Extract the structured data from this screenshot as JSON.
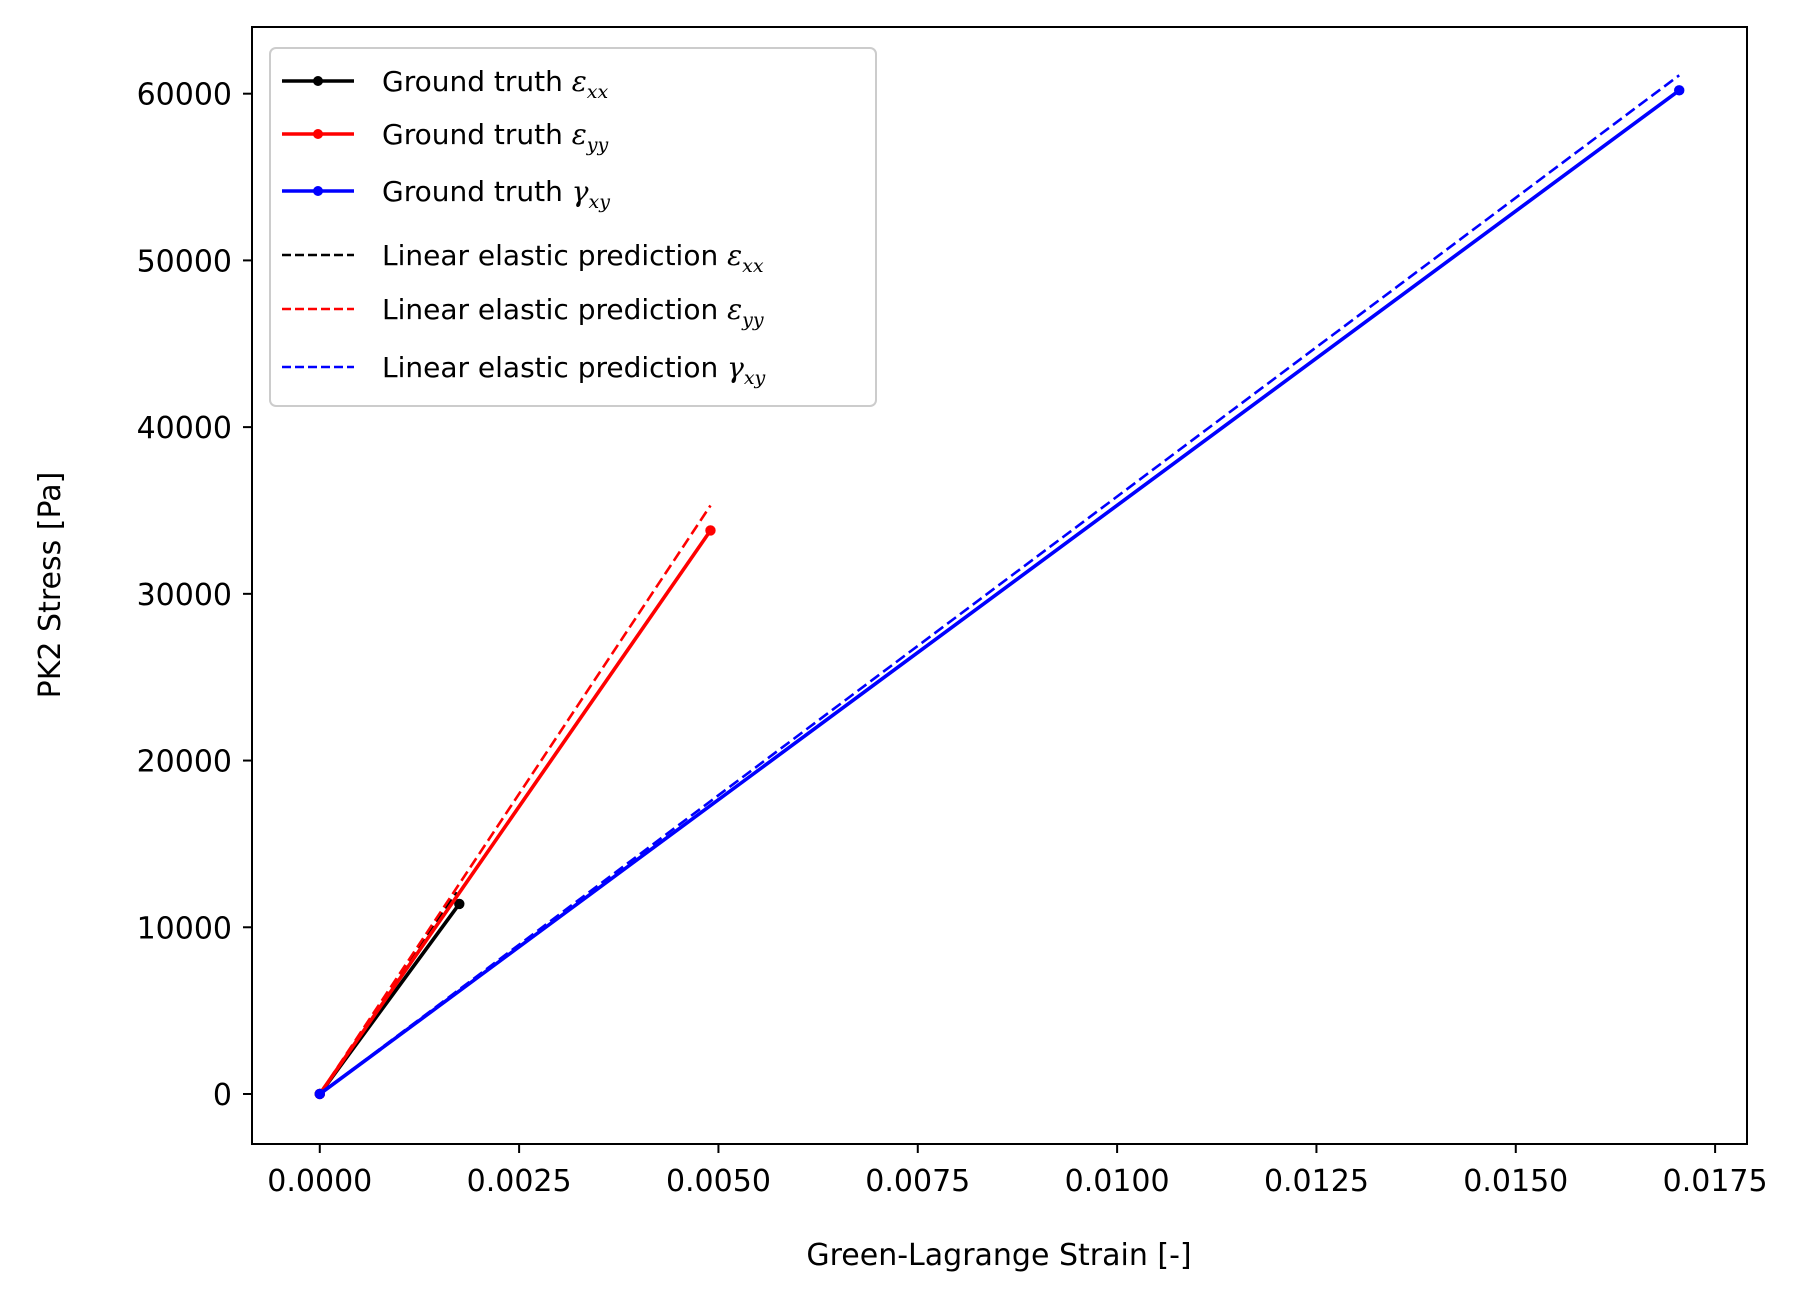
{
  "chart_data": {
    "type": "line",
    "title": "",
    "xlabel": "Green-Lagrange Strain [-]",
    "ylabel": "PK2 Stress [Pa]",
    "xlim": [
      -0.00085,
      0.0179
    ],
    "ylim": [
      -3000,
      64000
    ],
    "x_ticks": [
      0.0,
      0.0025,
      0.005,
      0.0075,
      0.01,
      0.0125,
      0.015,
      0.0175
    ],
    "x_tick_labels": [
      "0.0000",
      "0.0025",
      "0.0050",
      "0.0075",
      "0.0100",
      "0.0125",
      "0.0150",
      "0.0175"
    ],
    "y_ticks": [
      0,
      10000,
      20000,
      30000,
      40000,
      50000,
      60000
    ],
    "y_tick_labels": [
      "0",
      "10000",
      "20000",
      "30000",
      "40000",
      "50000",
      "60000"
    ],
    "grid": false,
    "legend_position": "upper-left",
    "series": [
      {
        "name": "Ground truth",
        "symbol": "ε",
        "subscript": "xx",
        "color": "#000000",
        "style": "solid-marker",
        "x": [
          0.0,
          0.00175
        ],
        "y": [
          0,
          11400
        ]
      },
      {
        "name": "Ground truth",
        "symbol": "ε",
        "subscript": "yy",
        "color": "#ff0000",
        "style": "solid-marker",
        "x": [
          0.0,
          0.0049
        ],
        "y": [
          0,
          33800
        ]
      },
      {
        "name": "Ground truth",
        "symbol": "γ",
        "subscript": "xy",
        "color": "#0000ff",
        "style": "solid-marker",
        "x": [
          0.0,
          0.01705
        ],
        "y": [
          0,
          60200
        ]
      },
      {
        "name": "Linear elastic prediction",
        "symbol": "ε",
        "subscript": "xx",
        "color": "#000000",
        "style": "dashed",
        "x": [
          0.0,
          0.00172
        ],
        "y": [
          0,
          12100
        ]
      },
      {
        "name": "Linear elastic prediction",
        "symbol": "ε",
        "subscript": "yy",
        "color": "#ff0000",
        "style": "dashed",
        "x": [
          0.0,
          0.0049
        ],
        "y": [
          0,
          35300
        ]
      },
      {
        "name": "Linear elastic prediction",
        "symbol": "γ",
        "subscript": "xy",
        "color": "#0000ff",
        "style": "dashed",
        "x": [
          0.0,
          0.01705
        ],
        "y": [
          0,
          61100
        ]
      }
    ]
  }
}
